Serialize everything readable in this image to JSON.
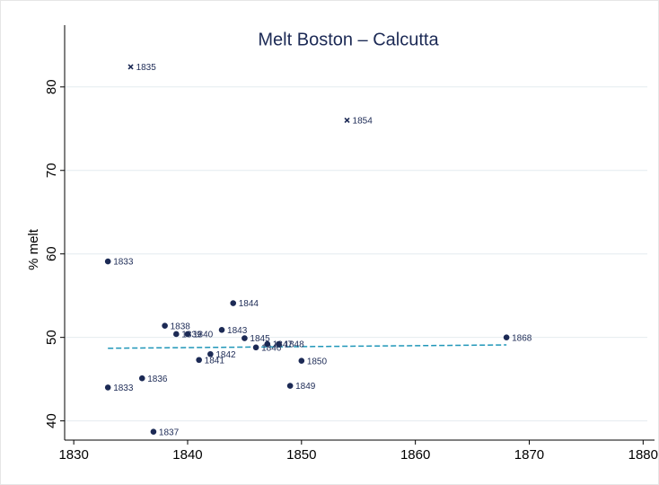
{
  "chart_data": {
    "type": "scatter",
    "title": "Melt Boston – Calcutta",
    "y_label": "% melt",
    "x": [
      1835,
      1854,
      1833,
      1844,
      1838,
      1839,
      1840,
      1843,
      1845,
      1847,
      1848,
      1846,
      1842,
      1841,
      1850,
      1868,
      1836,
      1833,
      1849,
      1837
    ],
    "values": [
      82.4,
      76.0,
      59.1,
      54.1,
      51.4,
      50.4,
      50.4,
      50.9,
      49.9,
      49.2,
      49.2,
      48.8,
      48.0,
      47.3,
      47.2,
      50.0,
      45.1,
      44.0,
      44.2,
      38.7
    ],
    "markers": [
      "x",
      "x",
      "dot",
      "dot",
      "dot",
      "dot",
      "dot",
      "dot",
      "dot",
      "dot",
      "dot",
      "dot",
      "dot",
      "dot",
      "dot",
      "dot",
      "dot",
      "dot",
      "dot",
      "dot"
    ],
    "color": "#1c2a55",
    "fit_line": {
      "x": [
        1833,
        1868
      ],
      "values": [
        48.7,
        49.1
      ],
      "color": "#1f96b8",
      "dashed": true
    },
    "xlim": [
      1829.2,
      1881
    ],
    "xticks": [
      1830,
      1840,
      1850,
      1860,
      1870,
      1880
    ],
    "ylim": [
      37.7,
      87.4
    ],
    "yticks": [
      40,
      50,
      60,
      70,
      80
    ],
    "grid": true
  }
}
